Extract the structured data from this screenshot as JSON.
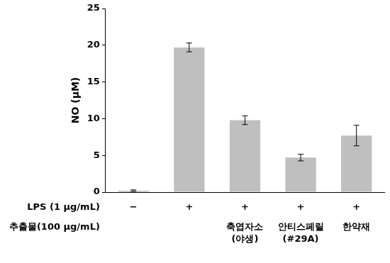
{
  "chart_data": {
    "type": "bar",
    "y_label": "NO (μM)",
    "values": [
      0.2,
      19.7,
      9.8,
      4.7,
      7.7
    ],
    "errors": [
      0.1,
      0.6,
      0.6,
      0.45,
      1.4
    ],
    "color": "#bfbfbf",
    "ylim": [
      0,
      25
    ],
    "yticks": [
      0,
      5,
      10,
      15,
      20,
      25
    ],
    "grid": false,
    "rows": [
      {
        "label": "LPS (1 μg/mL)",
        "cells": [
          "−",
          "+",
          "+",
          "+",
          "+"
        ]
      },
      {
        "label": "추출물(100 μg/mL)",
        "cells": [
          null,
          null,
          "축엽자소\n(야생)",
          "안티스페릴\n(#29A)",
          "한약재"
        ]
      }
    ]
  }
}
